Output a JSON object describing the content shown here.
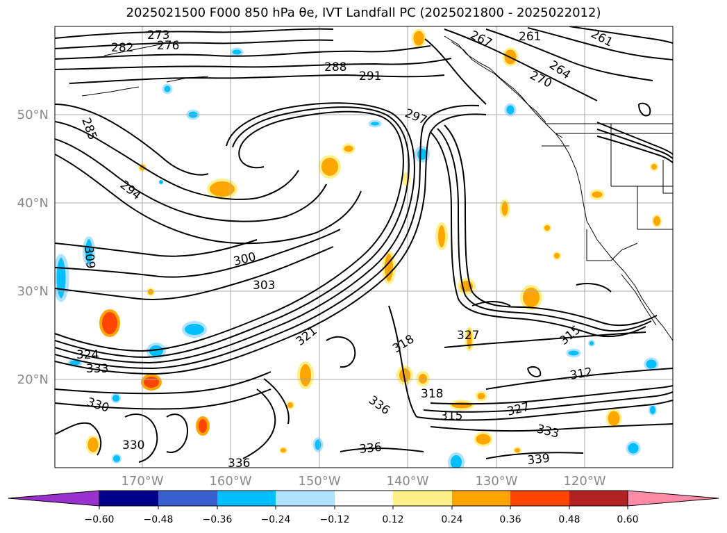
{
  "title": "2025021500 F000 850 hPa θe, IVT Landfall PC (2025021800 - 2025022012)",
  "axes": {
    "lat_labels": [
      "50°N",
      "40°N",
      "30°N",
      "20°N"
    ],
    "lon_labels": [
      "170°W",
      "160°W",
      "150°W",
      "140°W",
      "130°W",
      "120°W"
    ]
  },
  "contour_labels": [
    "273",
    "276",
    "282",
    "288",
    "291",
    "297",
    "285",
    "294",
    "300",
    "303",
    "309",
    "312",
    "315",
    "318",
    "321",
    "324",
    "327",
    "330",
    "333",
    "336",
    "339",
    "261",
    "264",
    "267",
    "270"
  ],
  "colorbar": {
    "colors": [
      "#9932cc",
      "#00008b",
      "#3a5fcd",
      "#00bfff",
      "#b0e2ff",
      "#ffffff",
      "#fff08a",
      "#ffa500",
      "#ff4500",
      "#b22222",
      "#ff8aa8"
    ],
    "tick_labels": [
      "−0.60",
      "−0.48",
      "−0.36",
      "−0.24",
      "−0.12",
      "0.12",
      "0.24",
      "0.36",
      "0.48",
      "0.60"
    ]
  },
  "colors": {
    "grid": "#aaaaaa",
    "contour": "#000000",
    "tick_text": "#888888"
  }
}
